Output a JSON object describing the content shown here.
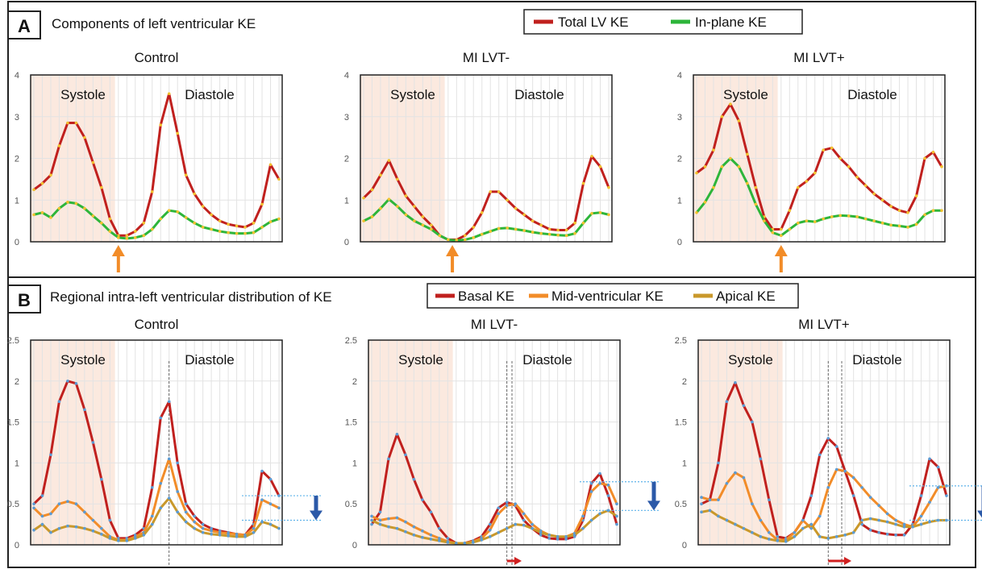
{
  "panels": [
    {
      "letter": "A",
      "title": "Components of left ventricular KE",
      "legend": [
        {
          "label": "Total LV KE",
          "color": "#c0201e"
        },
        {
          "label": "In-plane KE",
          "color": "#2db53a"
        }
      ]
    },
    {
      "letter": "B",
      "title": "Regional intra-left ventricular distribution of KE",
      "legend": [
        {
          "label": "Basal KE",
          "color": "#c0201e"
        },
        {
          "label": "Mid-ventricular KE",
          "color": "#f28c28"
        },
        {
          "label": "Apical KE",
          "color": "#c9982a"
        }
      ]
    }
  ],
  "phase_labels": {
    "systole": "Systole",
    "diastole": "Diastole"
  },
  "chart_data": [
    {
      "type": "line",
      "panel": "A",
      "title": "Control",
      "ylim": [
        0,
        4
      ],
      "yticks": [
        0,
        1,
        2,
        3,
        4
      ],
      "x_count": 30,
      "series": [
        {
          "name": "Total LV KE",
          "color": "#c0201e",
          "marker_color": "#f2c230",
          "values": [
            1.25,
            1.4,
            1.6,
            2.3,
            2.85,
            2.85,
            2.5,
            1.9,
            1.3,
            0.55,
            0.15,
            0.15,
            0.25,
            0.45,
            1.2,
            2.8,
            3.55,
            2.6,
            1.6,
            1.15,
            0.85,
            0.65,
            0.5,
            0.42,
            0.38,
            0.35,
            0.45,
            0.9,
            1.85,
            1.5
          ]
        },
        {
          "name": "In-plane KE",
          "color": "#2db53a",
          "marker_color": "#f2c230",
          "values": [
            0.65,
            0.7,
            0.58,
            0.8,
            0.95,
            0.92,
            0.8,
            0.62,
            0.45,
            0.25,
            0.1,
            0.08,
            0.1,
            0.15,
            0.3,
            0.55,
            0.75,
            0.72,
            0.58,
            0.45,
            0.35,
            0.3,
            0.25,
            0.22,
            0.2,
            0.2,
            0.22,
            0.35,
            0.48,
            0.55
          ]
        }
      ],
      "systole_end": 9.6,
      "arrow_x": 10
    },
    {
      "type": "line",
      "panel": "A",
      "title": "MI LVT-",
      "ylim": [
        0,
        4
      ],
      "yticks": [
        0,
        1,
        2,
        3,
        4
      ],
      "x_count": 30,
      "series": [
        {
          "name": "Total LV KE",
          "color": "#c0201e",
          "marker_color": "#f2c230",
          "values": [
            1.05,
            1.25,
            1.6,
            1.95,
            1.5,
            1.1,
            0.85,
            0.6,
            0.4,
            0.15,
            0.05,
            0.05,
            0.15,
            0.35,
            0.7,
            1.2,
            1.2,
            1.0,
            0.8,
            0.65,
            0.5,
            0.4,
            0.3,
            0.28,
            0.28,
            0.45,
            1.4,
            2.05,
            1.8,
            1.3
          ]
        },
        {
          "name": "In-plane KE",
          "color": "#2db53a",
          "marker_color": "#f2c230",
          "values": [
            0.5,
            0.6,
            0.8,
            1.02,
            0.85,
            0.65,
            0.5,
            0.4,
            0.3,
            0.15,
            0.05,
            0.03,
            0.05,
            0.1,
            0.18,
            0.25,
            0.32,
            0.33,
            0.3,
            0.27,
            0.23,
            0.2,
            0.18,
            0.16,
            0.15,
            0.2,
            0.45,
            0.68,
            0.7,
            0.65
          ]
        }
      ],
      "systole_end": 9.6,
      "arrow_x": 10.5
    },
    {
      "type": "line",
      "panel": "A",
      "title": "MI LVT+",
      "ylim": [
        0,
        4
      ],
      "yticks": [
        0,
        1,
        2,
        3,
        4
      ],
      "x_count": 30,
      "series": [
        {
          "name": "Total LV KE",
          "color": "#c0201e",
          "marker_color": "#f2c230",
          "values": [
            1.65,
            1.8,
            2.2,
            3.0,
            3.3,
            2.9,
            2.1,
            1.3,
            0.6,
            0.3,
            0.3,
            0.75,
            1.3,
            1.45,
            1.65,
            2.2,
            2.25,
            2.0,
            1.8,
            1.55,
            1.35,
            1.15,
            1.0,
            0.85,
            0.75,
            0.7,
            1.1,
            2.0,
            2.15,
            1.8
          ]
        },
        {
          "name": "In-plane KE",
          "color": "#2db53a",
          "marker_color": "#f2c230",
          "values": [
            0.7,
            0.95,
            1.3,
            1.8,
            2.0,
            1.8,
            1.4,
            0.9,
            0.5,
            0.22,
            0.15,
            0.3,
            0.45,
            0.5,
            0.48,
            0.55,
            0.6,
            0.63,
            0.62,
            0.6,
            0.55,
            0.5,
            0.45,
            0.4,
            0.38,
            0.35,
            0.42,
            0.65,
            0.75,
            0.75
          ]
        }
      ],
      "systole_end": 9.6,
      "arrow_x": 10
    },
    {
      "type": "line",
      "panel": "B",
      "title": "Control",
      "ylim": [
        0,
        2.5
      ],
      "yticks": [
        0,
        0.5,
        1,
        1.5,
        2,
        2.5
      ],
      "x_count": 30,
      "series": [
        {
          "name": "Basal KE",
          "color": "#c0201e",
          "marker_color": "#5a9bd5",
          "values": [
            0.5,
            0.6,
            1.1,
            1.75,
            2.0,
            1.97,
            1.65,
            1.25,
            0.8,
            0.3,
            0.08,
            0.08,
            0.12,
            0.2,
            0.7,
            1.55,
            1.75,
            1.0,
            0.5,
            0.35,
            0.25,
            0.2,
            0.17,
            0.15,
            0.13,
            0.12,
            0.25,
            0.9,
            0.8,
            0.6
          ]
        },
        {
          "name": "Mid-ventricular KE",
          "color": "#f28c28",
          "marker_color": "#5a9bd5",
          "values": [
            0.45,
            0.35,
            0.38,
            0.5,
            0.53,
            0.5,
            0.4,
            0.3,
            0.2,
            0.1,
            0.06,
            0.06,
            0.1,
            0.15,
            0.35,
            0.75,
            1.05,
            0.65,
            0.4,
            0.28,
            0.2,
            0.17,
            0.15,
            0.14,
            0.13,
            0.12,
            0.2,
            0.55,
            0.5,
            0.45
          ]
        },
        {
          "name": "Apical KE",
          "color": "#c9982a",
          "marker_color": "#5a9bd5",
          "values": [
            0.18,
            0.25,
            0.15,
            0.2,
            0.23,
            0.22,
            0.2,
            0.17,
            0.13,
            0.08,
            0.05,
            0.05,
            0.08,
            0.12,
            0.25,
            0.45,
            0.57,
            0.4,
            0.28,
            0.2,
            0.15,
            0.13,
            0.12,
            0.11,
            0.1,
            0.1,
            0.15,
            0.28,
            0.25,
            0.2
          ]
        }
      ],
      "systole_end": 9.6,
      "vlines": [
        16
      ],
      "hlines": [
        0.6,
        0.3
      ],
      "arrow_h": null
    },
    {
      "type": "line",
      "panel": "B",
      "title": "MI LVT-",
      "ylim": [
        0,
        2.5
      ],
      "yticks": [
        0,
        0.5,
        1,
        1.5,
        2,
        2.5
      ],
      "x_count": 30,
      "series": [
        {
          "name": "Basal KE",
          "color": "#c0201e",
          "marker_color": "#5a9bd5",
          "values": [
            0.25,
            0.4,
            1.05,
            1.35,
            1.1,
            0.8,
            0.55,
            0.4,
            0.2,
            0.08,
            0.02,
            0.02,
            0.05,
            0.1,
            0.25,
            0.45,
            0.52,
            0.48,
            0.3,
            0.2,
            0.12,
            0.08,
            0.07,
            0.07,
            0.1,
            0.3,
            0.75,
            0.87,
            0.6,
            0.25
          ]
        },
        {
          "name": "Mid-ventricular KE",
          "color": "#f28c28",
          "marker_color": "#5a9bd5",
          "values": [
            0.35,
            0.3,
            0.32,
            0.33,
            0.28,
            0.22,
            0.17,
            0.12,
            0.08,
            0.04,
            0.02,
            0.02,
            0.04,
            0.08,
            0.18,
            0.38,
            0.48,
            0.5,
            0.38,
            0.25,
            0.17,
            0.12,
            0.1,
            0.1,
            0.14,
            0.35,
            0.65,
            0.75,
            0.73,
            0.5
          ]
        },
        {
          "name": "Apical KE",
          "color": "#c9982a",
          "marker_color": "#5a9bd5",
          "values": [
            0.3,
            0.25,
            0.22,
            0.2,
            0.16,
            0.12,
            0.09,
            0.07,
            0.05,
            0.03,
            0.02,
            0.02,
            0.03,
            0.06,
            0.1,
            0.15,
            0.2,
            0.25,
            0.24,
            0.2,
            0.15,
            0.12,
            0.1,
            0.1,
            0.12,
            0.2,
            0.3,
            0.38,
            0.42,
            0.35
          ]
        }
      ],
      "systole_end": 9.6,
      "vlines": [
        16,
        16.6
      ],
      "hlines": [
        0.77,
        0.42
      ],
      "arrow_h": 16
    },
    {
      "type": "line",
      "panel": "B",
      "title": "MI LVT+",
      "ylim": [
        0,
        2.5
      ],
      "yticks": [
        0,
        0.5,
        1,
        1.5,
        2,
        2.5
      ],
      "x_count": 30,
      "series": [
        {
          "name": "Basal KE",
          "color": "#c0201e",
          "marker_color": "#5a9bd5",
          "values": [
            0.5,
            0.55,
            1.0,
            1.75,
            1.98,
            1.7,
            1.5,
            1.05,
            0.55,
            0.1,
            0.08,
            0.15,
            0.3,
            0.6,
            1.1,
            1.3,
            1.2,
            0.9,
            0.6,
            0.25,
            0.18,
            0.15,
            0.13,
            0.12,
            0.12,
            0.25,
            0.6,
            1.05,
            0.95,
            0.6
          ]
        },
        {
          "name": "Mid-ventricular KE",
          "color": "#f28c28",
          "marker_color": "#5a9bd5",
          "values": [
            0.58,
            0.55,
            0.55,
            0.75,
            0.88,
            0.82,
            0.5,
            0.3,
            0.15,
            0.06,
            0.06,
            0.15,
            0.3,
            0.2,
            0.35,
            0.7,
            0.92,
            0.9,
            0.82,
            0.7,
            0.58,
            0.48,
            0.38,
            0.3,
            0.25,
            0.22,
            0.35,
            0.52,
            0.7,
            0.72
          ]
        },
        {
          "name": "Apical KE",
          "color": "#c9982a",
          "marker_color": "#5a9bd5",
          "values": [
            0.4,
            0.42,
            0.35,
            0.3,
            0.25,
            0.2,
            0.15,
            0.1,
            0.07,
            0.05,
            0.04,
            0.1,
            0.2,
            0.25,
            0.1,
            0.08,
            0.1,
            0.12,
            0.15,
            0.3,
            0.32,
            0.3,
            0.28,
            0.25,
            0.22,
            0.22,
            0.25,
            0.28,
            0.3,
            0.3
          ]
        }
      ],
      "systole_end": 9.6,
      "vlines": [
        15,
        16.6
      ],
      "hlines": [
        0.72,
        0.3
      ],
      "arrow_h": 15
    }
  ]
}
